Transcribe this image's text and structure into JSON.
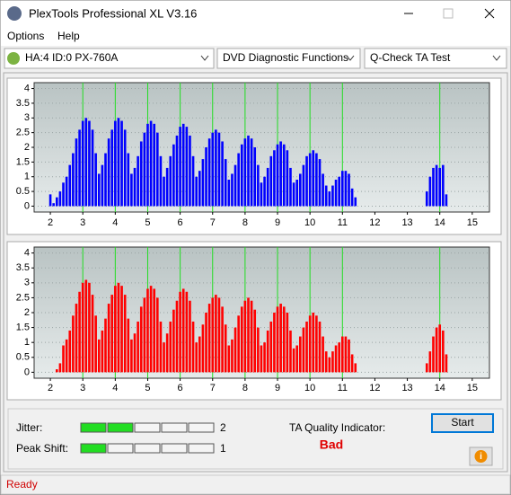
{
  "window": {
    "title": "PlexTools Professional XL V3.16",
    "menu": [
      "Options",
      "Help"
    ],
    "drive": "HA:4 ID:0  PX-760A",
    "function": "DVD Diagnostic Functions",
    "test": "Q-Check TA Test"
  },
  "chart_data": [
    {
      "type": "bar",
      "color": "#0000ff",
      "x": [
        2,
        2.1,
        2.2,
        2.3,
        2.4,
        2.5,
        2.6,
        2.7,
        2.8,
        2.9,
        3,
        3.1,
        3.2,
        3.3,
        3.4,
        3.5,
        3.6,
        3.7,
        3.8,
        3.9,
        4,
        4.1,
        4.2,
        4.3,
        4.4,
        4.5,
        4.6,
        4.7,
        4.8,
        4.9,
        5,
        5.1,
        5.2,
        5.3,
        5.4,
        5.5,
        5.6,
        5.7,
        5.8,
        5.9,
        6,
        6.1,
        6.2,
        6.3,
        6.4,
        6.5,
        6.6,
        6.7,
        6.8,
        6.9,
        7,
        7.1,
        7.2,
        7.3,
        7.4,
        7.5,
        7.6,
        7.7,
        7.8,
        7.9,
        8,
        8.1,
        8.2,
        8.3,
        8.4,
        8.5,
        8.6,
        8.7,
        8.8,
        8.9,
        9,
        9.1,
        9.2,
        9.3,
        9.4,
        9.5,
        9.6,
        9.7,
        9.8,
        9.9,
        10,
        10.1,
        10.2,
        10.3,
        10.4,
        10.5,
        10.6,
        10.7,
        10.8,
        10.9,
        11,
        11.1,
        11.2,
        11.3,
        11.4,
        11.5,
        13.6,
        13.7,
        13.8,
        13.9,
        14,
        14.1,
        14.2
      ],
      "values": [
        0.4,
        0.1,
        0.3,
        0.5,
        0.8,
        1.0,
        1.4,
        1.8,
        2.3,
        2.6,
        2.9,
        3.0,
        2.9,
        2.6,
        1.8,
        1.1,
        1.4,
        1.8,
        2.3,
        2.6,
        2.9,
        3.0,
        2.9,
        2.6,
        1.8,
        1.1,
        1.3,
        1.7,
        2.2,
        2.5,
        2.8,
        2.9,
        2.8,
        2.5,
        1.7,
        1.0,
        1.3,
        1.7,
        2.1,
        2.4,
        2.7,
        2.8,
        2.7,
        2.4,
        1.7,
        1.0,
        1.2,
        1.6,
        2.0,
        2.3,
        2.5,
        2.6,
        2.5,
        2.2,
        1.6,
        0.9,
        1.1,
        1.4,
        1.8,
        2.1,
        2.3,
        2.4,
        2.3,
        2.0,
        1.4,
        0.8,
        1.0,
        1.3,
        1.7,
        1.9,
        2.1,
        2.2,
        2.1,
        1.9,
        1.3,
        0.8,
        0.9,
        1.1,
        1.4,
        1.7,
        1.8,
        1.9,
        1.8,
        1.6,
        1.1,
        0.7,
        0.5,
        0.7,
        0.9,
        1.0,
        1.2,
        1.2,
        1.1,
        0.6,
        0.3,
        0,
        0.5,
        1.0,
        1.3,
        1.4,
        1.3,
        1.4,
        0.4
      ],
      "xlim": [
        1.5,
        15.53
      ],
      "xticks": [
        2,
        3,
        4,
        5,
        6,
        7,
        8,
        9,
        10,
        11,
        12,
        13,
        14,
        15
      ],
      "ylim": [
        -0.2,
        4.2
      ],
      "yticks": [
        0,
        0.5,
        1,
        1.5,
        2,
        2.5,
        3,
        3.5,
        4
      ],
      "guide_lines": [
        3,
        4,
        5,
        6,
        7,
        8,
        9,
        10,
        11,
        14
      ],
      "guide_color": "#22dd22"
    },
    {
      "type": "bar",
      "color": "#ff0000",
      "x": [
        2,
        2.1,
        2.2,
        2.3,
        2.4,
        2.5,
        2.6,
        2.7,
        2.8,
        2.9,
        3,
        3.1,
        3.2,
        3.3,
        3.4,
        3.5,
        3.6,
        3.7,
        3.8,
        3.9,
        4,
        4.1,
        4.2,
        4.3,
        4.4,
        4.5,
        4.6,
        4.7,
        4.8,
        4.9,
        5,
        5.1,
        5.2,
        5.3,
        5.4,
        5.5,
        5.6,
        5.7,
        5.8,
        5.9,
        6,
        6.1,
        6.2,
        6.3,
        6.4,
        6.5,
        6.6,
        6.7,
        6.8,
        6.9,
        7,
        7.1,
        7.2,
        7.3,
        7.4,
        7.5,
        7.6,
        7.7,
        7.8,
        7.9,
        8,
        8.1,
        8.2,
        8.3,
        8.4,
        8.5,
        8.6,
        8.7,
        8.8,
        8.9,
        9,
        9.1,
        9.2,
        9.3,
        9.4,
        9.5,
        9.6,
        9.7,
        9.8,
        9.9,
        10,
        10.1,
        10.2,
        10.3,
        10.4,
        10.5,
        10.6,
        10.7,
        10.8,
        10.9,
        11,
        11.1,
        11.2,
        11.3,
        11.4,
        11.5,
        13.6,
        13.7,
        13.8,
        13.9,
        14,
        14.1,
        14.2
      ],
      "values": [
        0,
        0,
        0.1,
        0.3,
        0.9,
        1.1,
        1.4,
        1.9,
        2.3,
        2.7,
        3.0,
        3.1,
        3.0,
        2.6,
        1.9,
        1.1,
        1.4,
        1.8,
        2.3,
        2.6,
        2.9,
        3.0,
        2.9,
        2.6,
        1.8,
        1.1,
        1.3,
        1.7,
        2.2,
        2.5,
        2.8,
        2.9,
        2.8,
        2.5,
        1.7,
        1.0,
        1.3,
        1.7,
        2.1,
        2.4,
        2.7,
        2.8,
        2.7,
        2.4,
        1.7,
        1.0,
        1.2,
        1.6,
        2.0,
        2.3,
        2.5,
        2.6,
        2.5,
        2.2,
        1.6,
        0.9,
        1.1,
        1.5,
        1.9,
        2.2,
        2.4,
        2.5,
        2.4,
        2.1,
        1.5,
        0.9,
        1.0,
        1.4,
        1.7,
        2.0,
        2.2,
        2.3,
        2.2,
        2.0,
        1.4,
        0.8,
        0.9,
        1.2,
        1.5,
        1.7,
        1.9,
        2.0,
        1.9,
        1.7,
        1.2,
        0.7,
        0.5,
        0.7,
        0.9,
        1.0,
        1.2,
        1.2,
        1.1,
        0.6,
        0.3,
        0,
        0.3,
        0.7,
        1.2,
        1.5,
        1.6,
        1.4,
        0.6
      ],
      "xlim": [
        1.5,
        15.53
      ],
      "xticks": [
        2,
        3,
        4,
        5,
        6,
        7,
        8,
        9,
        10,
        11,
        12,
        13,
        14,
        15
      ],
      "ylim": [
        -0.2,
        4.2
      ],
      "yticks": [
        0,
        0.5,
        1,
        1.5,
        2,
        2.5,
        3,
        3.5,
        4
      ],
      "guide_lines": [
        3,
        4,
        5,
        6,
        7,
        8,
        9,
        10,
        11,
        14
      ],
      "guide_color": "#22dd22"
    }
  ],
  "panel": {
    "jitter_label": "Jitter:",
    "jitter": 2,
    "peak_shift_label": "Peak Shift:",
    "peak_shift": 1,
    "meter_segments": 5,
    "ta_label": "TA Quality Indicator:",
    "ta_result": "Bad",
    "start_button": "Start"
  },
  "status": "Ready"
}
